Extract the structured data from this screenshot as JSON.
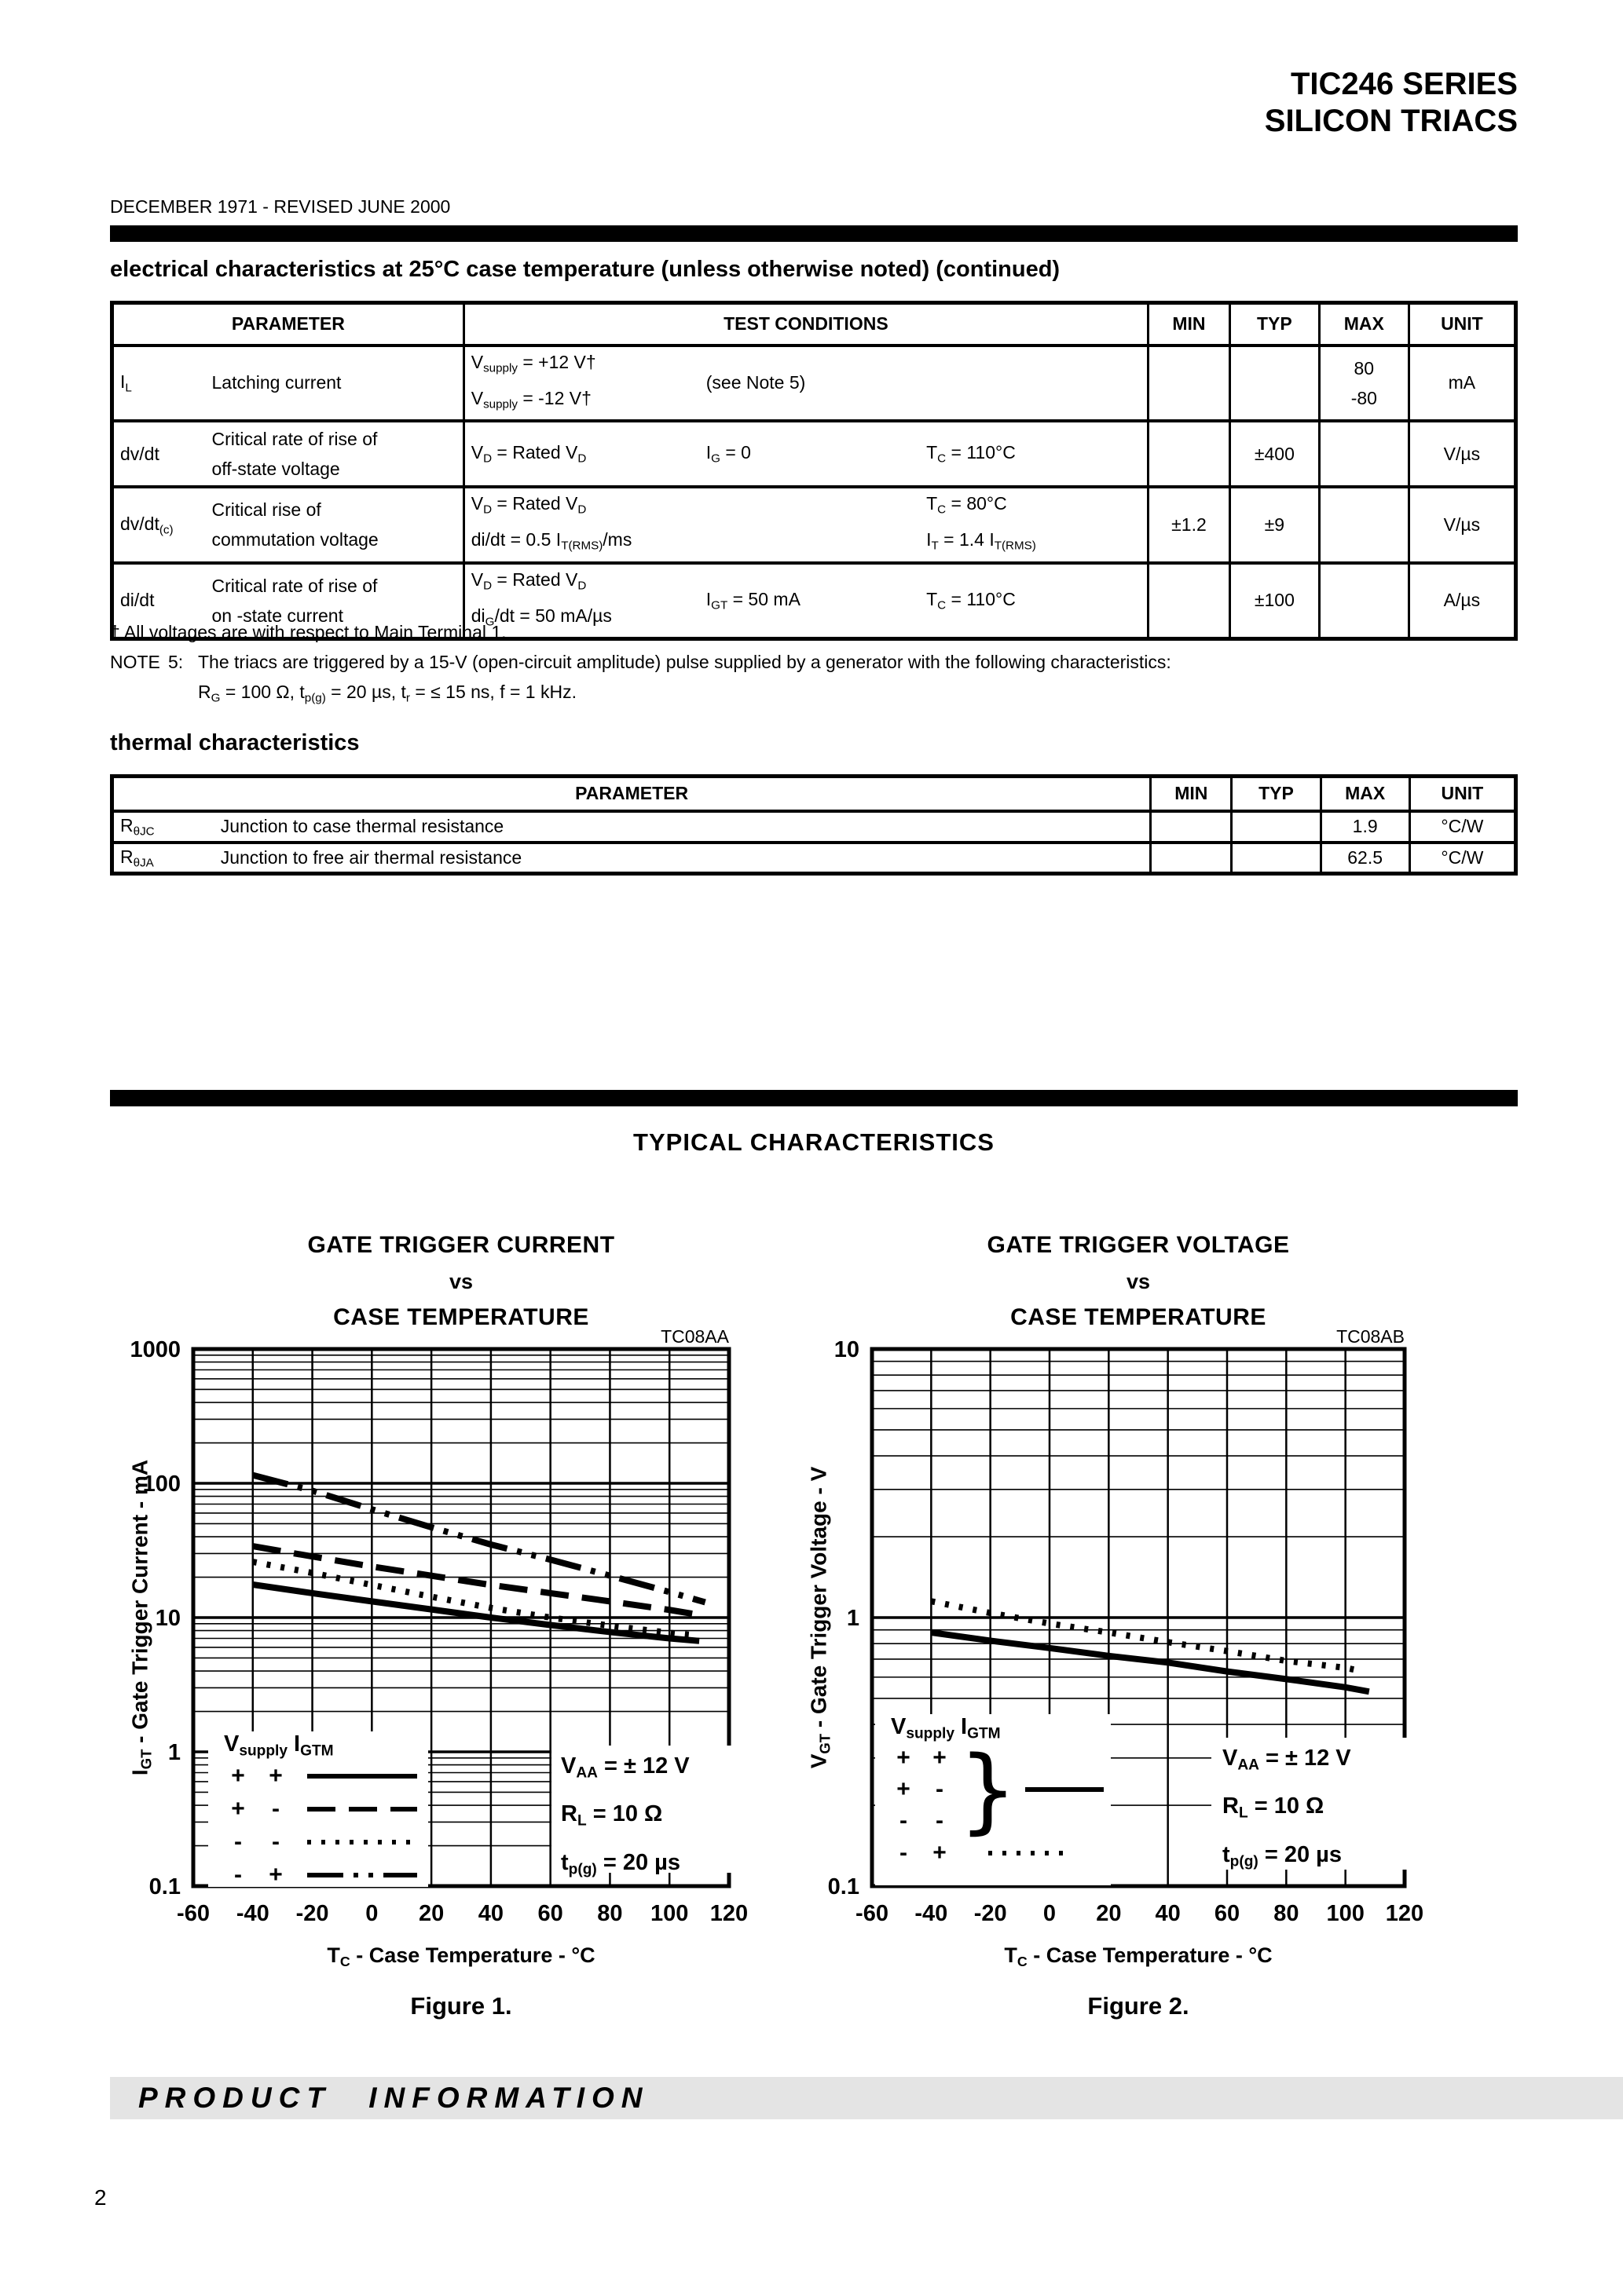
{
  "page": {
    "header_line1": "TIC246 SERIES",
    "header_line2": "SILICON TRIACS",
    "date_line": "DECEMBER 1971 - REVISED JUNE 2000",
    "section1_title": "electrical characteristics at 25°C case temperature (unless otherwise noted) (continued)",
    "section2_title": "thermal characteristics",
    "typical_title": "TYPICAL CHARACTERISTICS",
    "footer_text": "PRODUCT INFORMATION",
    "page_number": "2"
  },
  "notes": {
    "dagger": "† All voltages are with respect to Main Terminal 1.",
    "note_label": "NOTE",
    "note_num": "5:",
    "note_text": "The triacs are triggered by a 15-V (open-circuit amplitude) pulse supplied by a generator with the following characteristics:",
    "note_text2": "R_{G} = 100 Ω, t_{p(g)} = 20 µs, t_{r} = ≤ 15 ns, f = 1 kHz."
  },
  "electrical_table": {
    "headers": [
      "PARAMETER",
      "TEST CONDITIONS",
      "MIN",
      "TYP",
      "MAX",
      "UNIT"
    ],
    "rows": [
      {
        "symbol": "I_{L}",
        "name": [
          "Latching current"
        ],
        "cond1": [
          "V_{supply} = +12 V†",
          "V_{supply} =  -12 V†"
        ],
        "cond2": [
          "(see Note 5)"
        ],
        "cond3": [],
        "min": "",
        "typ": "",
        "max2": [
          "80",
          "-80"
        ],
        "unit": "mA"
      },
      {
        "symbol": "dv/dt",
        "name": [
          "Critical rate of rise of",
          "off-state voltage"
        ],
        "cond1": [
          "V_{D} = Rated V_{D}"
        ],
        "cond2": [
          "I_{G} = 0"
        ],
        "cond3": [
          "T_{C} = 110°C"
        ],
        "min": "",
        "typ": "±400",
        "max": "",
        "unit": "V/µs"
      },
      {
        "symbol": "dv/dt_{(c)}",
        "name": [
          "Critical rise of",
          "commutation voltage"
        ],
        "cond1": [
          "V_{D} = Rated V_{D}",
          "di/dt = 0.5 I_{T(RMS)}/ms"
        ],
        "cond2": [],
        "cond3": [
          "T_{C} = 80°C",
          "I_{T} = 1.4 I_{T(RMS)}"
        ],
        "min": "±1.2",
        "typ": "±9",
        "max": "",
        "unit": "V/µs"
      },
      {
        "symbol": "di/dt",
        "name": [
          "Critical rate of rise of",
          "on -state current"
        ],
        "cond1": [
          "V_{D} = Rated V_{D}",
          "di_{G}/dt = 50 mA/µs"
        ],
        "cond2": [
          "I_{GT} = 50 mA"
        ],
        "cond3": [
          "T_{C} = 110°C"
        ],
        "min": "",
        "typ": "±100",
        "max": "",
        "unit": "A/µs"
      }
    ]
  },
  "thermal_table": {
    "headers": [
      "PARAMETER",
      "MIN",
      "TYP",
      "MAX",
      "UNIT"
    ],
    "rows": [
      {
        "symbol": "R_{θJC}",
        "name": "Junction to case thermal resistance",
        "min": "",
        "typ": "",
        "max": "1.9",
        "unit": "°C/W"
      },
      {
        "symbol": "R_{θJA}",
        "name": "Junction to free air thermal resistance",
        "min": "",
        "typ": "",
        "max": "62.5",
        "unit": "°C/W"
      }
    ]
  },
  "chart_data": [
    {
      "id": "figure-1",
      "type": "line",
      "title_lines": [
        "GATE TRIGGER CURRENT",
        "vs",
        "CASE TEMPERATURE"
      ],
      "code": "TC08AA",
      "xlabel": "T_{C} - Case Temperature - °C",
      "ylabel": "I_{GT} - Gate Trigger Current - mA",
      "caption": "Figure 1.",
      "xlim": [
        -60,
        120
      ],
      "ylim": [
        0.1,
        1000
      ],
      "yscale": "log",
      "grid": "log-minor",
      "x_ticks": [
        -60,
        -40,
        -20,
        0,
        20,
        40,
        60,
        80,
        100,
        120
      ],
      "y_ticks": [
        {
          "v": 1000,
          "label": "1000"
        },
        {
          "v": 100,
          "label": "100"
        },
        {
          "v": 10,
          "label": "10"
        },
        {
          "v": 1,
          "label": "1"
        },
        {
          "v": 0.1,
          "label": "0.1"
        }
      ],
      "legend": {
        "grouped": false,
        "header": "V_{supply} I_{GTM}",
        "rows": [
          {
            "vsupply": "+",
            "igtm": "+",
            "style": "solid"
          },
          {
            "vsupply": "+",
            "igtm": "-",
            "style": "dashed"
          },
          {
            "vsupply": "-",
            "igtm": "-",
            "style": "dotted"
          },
          {
            "vsupply": "-",
            "igtm": "+",
            "style": "dashdotdot"
          }
        ]
      },
      "conditions": [
        "V_{AA} = ± 12 V",
        "R_{L} = 10 Ω",
        "t_{p(g)} = 20 µs"
      ],
      "series": [
        {
          "name": "Vsupply + / IGTM +",
          "style": "solid",
          "points": [
            [
              -40,
              17.6
            ],
            [
              -20,
              15.2
            ],
            [
              0,
              13.2
            ],
            [
              20,
              11.5
            ],
            [
              40,
              10
            ],
            [
              60,
              8.8
            ],
            [
              80,
              7.8
            ],
            [
              100,
              7.0
            ],
            [
              110,
              6.7
            ]
          ]
        },
        {
          "name": "Vsupply + / IGTM -",
          "style": "dashed",
          "points": [
            [
              -40,
              34
            ],
            [
              -20,
              28.5
            ],
            [
              0,
              24
            ],
            [
              20,
              20.5
            ],
            [
              40,
              17.5
            ],
            [
              60,
              15.2
            ],
            [
              80,
              13.2
            ],
            [
              100,
              11.4
            ],
            [
              112,
              10.3
            ]
          ]
        },
        {
          "name": "Vsupply - / IGTM -",
          "style": "dotted",
          "points": [
            [
              -40,
              26
            ],
            [
              -20,
              21.5
            ],
            [
              0,
              17.5
            ],
            [
              20,
              14.3
            ],
            [
              40,
              11.8
            ],
            [
              60,
              10.0
            ],
            [
              80,
              8.7
            ],
            [
              100,
              7.7
            ],
            [
              108,
              7.4
            ]
          ]
        },
        {
          "name": "Vsupply - / IGTM +",
          "style": "dashdotdot",
          "points": [
            [
              -40,
              115
            ],
            [
              -20,
              88
            ],
            [
              0,
              64
            ],
            [
              20,
              47
            ],
            [
              40,
              35
            ],
            [
              60,
              27
            ],
            [
              80,
              20.5
            ],
            [
              100,
              15.5
            ],
            [
              112,
              13
            ]
          ]
        }
      ]
    },
    {
      "id": "figure-2",
      "type": "line",
      "title_lines": [
        "GATE TRIGGER VOLTAGE",
        "vs",
        "CASE TEMPERATURE"
      ],
      "code": "TC08AB",
      "xlabel": "T_{C} - Case Temperature - °C",
      "ylabel": "V_{GT} - Gate Trigger Voltage - V",
      "caption": "Figure 2.",
      "xlim": [
        -60,
        120
      ],
      "ylim": [
        0.1,
        10
      ],
      "yscale": "log",
      "grid": "log-minor",
      "x_ticks": [
        -60,
        -40,
        -20,
        0,
        20,
        40,
        60,
        80,
        100,
        120
      ],
      "y_ticks": [
        {
          "v": 10,
          "label": "10"
        },
        {
          "v": 1,
          "label": "1"
        },
        {
          "v": 0.1,
          "label": "0.1"
        }
      ],
      "legend": {
        "grouped": true,
        "header": "V_{supply} I_{GTM}",
        "group_rows": [
          {
            "vsupply": "+",
            "igtm": "+"
          },
          {
            "vsupply": "+",
            "igtm": "-"
          },
          {
            "vsupply": "-",
            "igtm": "-"
          }
        ],
        "group_style": "solid",
        "single_row": {
          "vsupply": "-",
          "igtm": "+",
          "style": "dotted"
        }
      },
      "conditions": [
        "V_{AA} = ± 12 V",
        "R_{L} = 10 Ω",
        "t_{p(g)} = 20 µs"
      ],
      "series": [
        {
          "name": "Vsupply +/+, +/-, -/- (grouped)",
          "style": "solid",
          "points": [
            [
              -40,
              0.88
            ],
            [
              -20,
              0.82
            ],
            [
              0,
              0.77
            ],
            [
              20,
              0.72
            ],
            [
              40,
              0.68
            ],
            [
              60,
              0.63
            ],
            [
              80,
              0.59
            ],
            [
              100,
              0.55
            ],
            [
              108,
              0.53
            ]
          ]
        },
        {
          "name": "Vsupply - / IGTM +",
          "style": "dotted",
          "points": [
            [
              -40,
              1.15
            ],
            [
              -20,
              1.04
            ],
            [
              0,
              0.95
            ],
            [
              20,
              0.88
            ],
            [
              40,
              0.81
            ],
            [
              60,
              0.75
            ],
            [
              80,
              0.69
            ],
            [
              100,
              0.65
            ],
            [
              106,
              0.63
            ]
          ]
        }
      ]
    }
  ]
}
